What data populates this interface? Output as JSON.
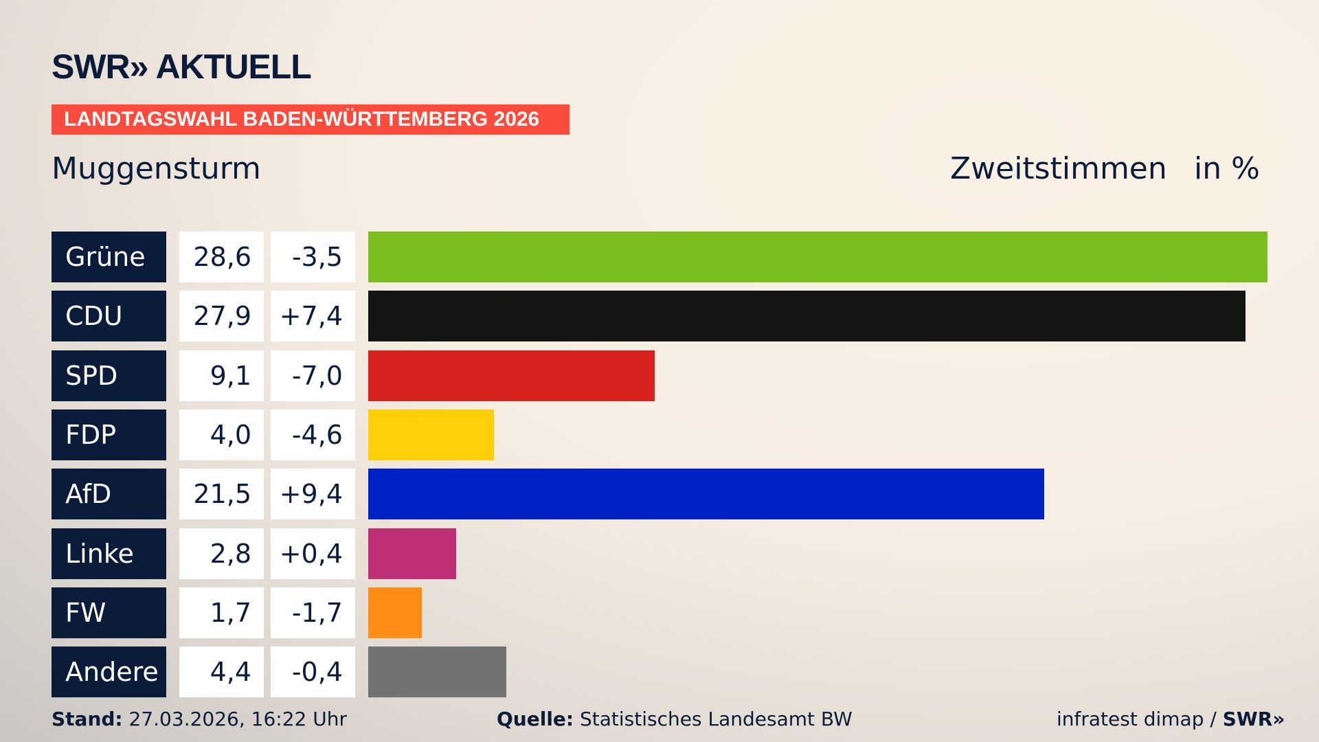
{
  "header": {
    "logo": "SWR» AKTUELL",
    "banner": "LANDTAGSWAHL BADEN-WÜRTTEMBERG 2026",
    "place": "Muggensturm",
    "vote_type": "Zweitstimmen",
    "unit": "in %"
  },
  "chart_data": {
    "type": "bar",
    "orientation": "horizontal",
    "xlim": [
      0,
      28.6
    ],
    "categories": [
      "Grüne",
      "CDU",
      "SPD",
      "FDP",
      "AfD",
      "Linke",
      "FW",
      "Andere"
    ],
    "values": [
      28.6,
      27.9,
      9.1,
      4.0,
      21.5,
      2.8,
      1.7,
      4.4
    ],
    "value_labels": [
      "28,6",
      "27,9",
      "9,1",
      "4,0",
      "21,5",
      "2,8",
      "1,7",
      "4,4"
    ],
    "diff_labels": [
      "-3,5",
      "+7,4",
      "-7,0",
      "-4,6",
      "+9,4",
      "+0,4",
      "-1,7",
      "-0,4"
    ],
    "colors": [
      "#7abd1e",
      "#141414",
      "#d9211f",
      "#ffcf0a",
      "#0021c6",
      "#be3075",
      "#ff8c17",
      "#727272"
    ]
  },
  "footer": {
    "stand_label": "Stand:",
    "stand_value": "27.03.2026, 16:22 Uhr",
    "source_label": "Quelle:",
    "source_value": "Statistisches Landesamt BW",
    "credit": "infratest dimap / ",
    "credit_logo": "SWR»"
  }
}
